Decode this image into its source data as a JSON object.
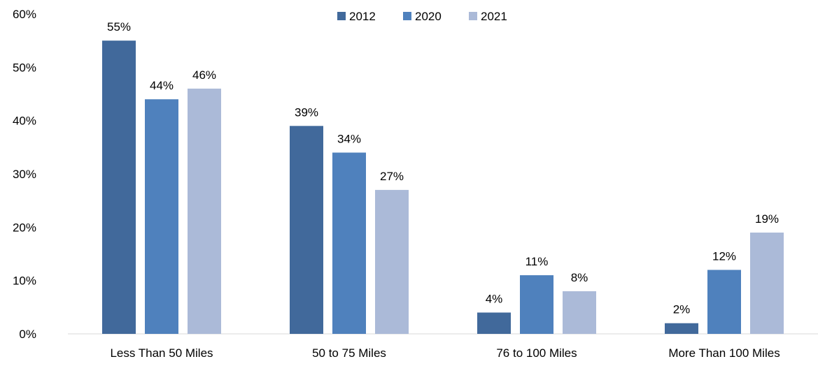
{
  "chart_data": {
    "type": "bar",
    "title": "",
    "xlabel": "",
    "ylabel": "",
    "categories": [
      "Less Than 50 Miles",
      "50 to 75 Miles",
      "76 to 100 Miles",
      "More Than 100 Miles"
    ],
    "series": [
      {
        "name": "2012",
        "color": "#41699b",
        "values": [
          55,
          39,
          4,
          2
        ],
        "labels": [
          "55%",
          "39%",
          "4%",
          "2%"
        ]
      },
      {
        "name": "2020",
        "color": "#4f81bd",
        "values": [
          44,
          34,
          11,
          12
        ],
        "labels": [
          "44%",
          "34%",
          "11%",
          "12%"
        ]
      },
      {
        "name": "2021",
        "color": "#abbad8",
        "values": [
          46,
          27,
          8,
          19
        ],
        "labels": [
          "46%",
          "27%",
          "8%",
          "19%"
        ]
      }
    ],
    "ylim": [
      0,
      60
    ],
    "yticks": [
      0,
      10,
      20,
      30,
      40,
      50,
      60
    ],
    "ytick_labels": [
      "0%",
      "10%",
      "20%",
      "30%",
      "40%",
      "50%",
      "60%"
    ],
    "grid": false,
    "legend_position": "top-center"
  }
}
